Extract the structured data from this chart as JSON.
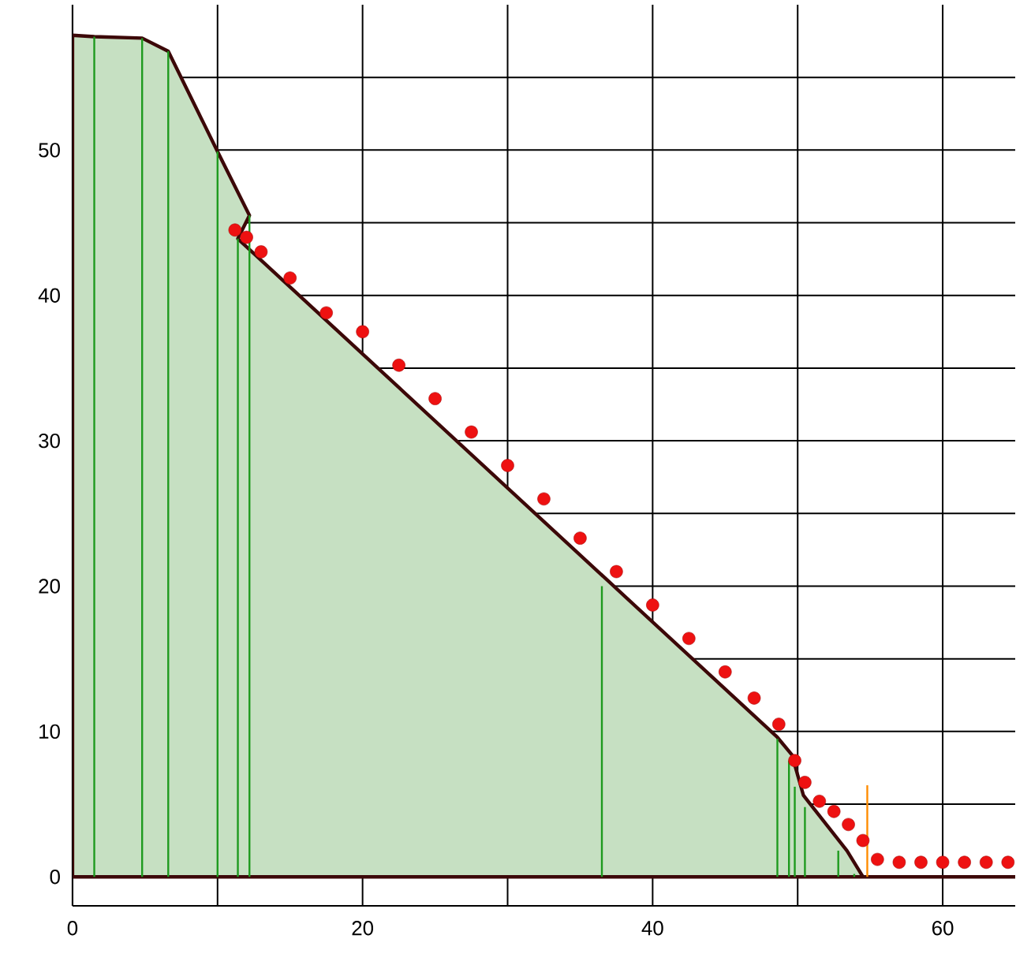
{
  "chart_data": {
    "type": "area",
    "xlim": [
      0,
      65
    ],
    "ylim": [
      -2,
      60
    ],
    "xticks": [
      0,
      {
        "value": 10,
        "label": null
      },
      20,
      {
        "value": 30,
        "label": null
      },
      40,
      {
        "value": 50,
        "label": null
      },
      60
    ],
    "yticks": [
      0,
      {
        "value": 5,
        "label": null
      },
      10,
      {
        "value": 15,
        "label": null
      },
      20,
      {
        "value": 25,
        "label": null
      },
      30,
      {
        "value": 35,
        "label": null
      },
      40,
      {
        "value": 45,
        "label": null
      },
      50,
      {
        "value": 55,
        "label": null
      }
    ],
    "grid": true,
    "series": [
      {
        "color": "#c6e0c2",
        "x": [
          0,
          1.5,
          4.8,
          6.6,
          10,
          12.2,
          11.4,
          48.6,
          49.6,
          50.4,
          53.4,
          54.5,
          65
        ],
        "values": [
          57.9,
          57.8,
          57.7,
          56.8,
          49.9,
          45.5,
          43.9,
          9.6,
          8.4,
          5.6,
          1.8,
          0,
          0
        ]
      },
      {
        "type": "scatter",
        "color": "#ee1111",
        "x": [
          11.2,
          12,
          13,
          15,
          17.5,
          20,
          22.5,
          25,
          27.5,
          30,
          32.5,
          35,
          37.5,
          40,
          42.5,
          45,
          47,
          48.7,
          49.8,
          50.5,
          51.5,
          52.5,
          53.5,
          54.5,
          55.5,
          57,
          58.5,
          60,
          61.5,
          63,
          64.5
        ],
        "values": [
          44.5,
          44,
          43,
          41.2,
          38.8,
          37.5,
          35.2,
          32.9,
          30.6,
          28.3,
          26,
          23.3,
          21,
          18.7,
          16.4,
          14.1,
          12.3,
          10.5,
          8,
          6.5,
          5.2,
          4.5,
          3.6,
          2.5,
          1.2,
          1,
          1,
          1,
          1,
          1,
          1
        ]
      },
      {
        "type": "bar",
        "color": "#1e9a1e",
        "x": [
          1.5,
          4.8,
          6.6,
          10,
          11.4,
          12.2,
          36.5,
          48.6,
          49.4,
          49.8,
          50.5,
          52.8,
          53.9
        ],
        "values": [
          57.8,
          57.7,
          56.8,
          49.9,
          43.9,
          45.5,
          20,
          9.5,
          8,
          6.2,
          4.8,
          1.8,
          0.2
        ]
      },
      {
        "type": "bar",
        "color": "#ff8c00",
        "x": [
          54.8
        ],
        "values": [
          6.3
        ]
      }
    ]
  }
}
